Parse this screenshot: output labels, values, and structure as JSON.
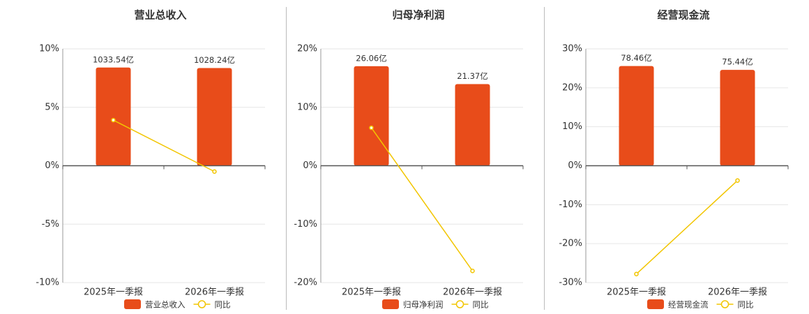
{
  "chart_data": [
    {
      "type": "bar-line",
      "title": "营业总收入",
      "categories": [
        "2025年一季报",
        "2026年一季报"
      ],
      "series": [
        {
          "name": "营业总收入",
          "type": "bar",
          "axis": "y2",
          "color": "#e84c1a",
          "values": [
            1033.54,
            1028.24
          ],
          "value_labels": [
            "1033.54亿",
            "1028.24亿"
          ]
        },
        {
          "name": "同比",
          "type": "line",
          "color": "#f2c500",
          "values": [
            3.9,
            -0.5
          ]
        }
      ],
      "ylim": [
        -10,
        10
      ],
      "yticks": [
        {
          "value": -10,
          "label": "-10%"
        },
        {
          "value": -5,
          "label": "-5%"
        },
        {
          "value": 0,
          "label": "0%"
        },
        {
          "value": 5,
          "label": "5%"
        },
        {
          "value": 10,
          "label": "10%"
        }
      ],
      "y2lim": [
        -1230,
        1230
      ],
      "grid": true
    },
    {
      "type": "bar-line",
      "title": "归母净利润",
      "categories": [
        "2025年一季报",
        "2026年一季报"
      ],
      "series": [
        {
          "name": "归母净利润",
          "type": "bar",
          "axis": "y2",
          "color": "#e84c1a",
          "values": [
            26.06,
            21.37
          ],
          "value_labels": [
            "26.06亿",
            "21.37亿"
          ]
        },
        {
          "name": "同比",
          "type": "line",
          "color": "#f2c500",
          "values": [
            6.5,
            -18
          ]
        }
      ],
      "ylim": [
        -20,
        20
      ],
      "yticks": [
        {
          "value": -20,
          "label": "-20%"
        },
        {
          "value": -10,
          "label": "-10%"
        },
        {
          "value": 0,
          "label": "0%"
        },
        {
          "value": 10,
          "label": "10%"
        },
        {
          "value": 20,
          "label": "20%"
        }
      ],
      "y2lim": [
        -30.6,
        30.6
      ],
      "grid": true
    },
    {
      "type": "bar-line",
      "title": "经营现金流",
      "categories": [
        "2025年一季报",
        "2026年一季报"
      ],
      "series": [
        {
          "name": "经营现金流",
          "type": "bar",
          "axis": "y2",
          "color": "#e84c1a",
          "values": [
            78.46,
            75.44
          ],
          "value_labels": [
            "78.46亿",
            "75.44亿"
          ]
        },
        {
          "name": "同比",
          "type": "line",
          "color": "#f2c500",
          "values": [
            -27.8,
            -3.8
          ]
        }
      ],
      "ylim": [
        -30,
        30
      ],
      "yticks": [
        {
          "value": -30,
          "label": "-30%"
        },
        {
          "value": -20,
          "label": "-20%"
        },
        {
          "value": -10,
          "label": "-10%"
        },
        {
          "value": 0,
          "label": "0%"
        },
        {
          "value": 10,
          "label": "10%"
        },
        {
          "value": 20,
          "label": "20%"
        },
        {
          "value": 30,
          "label": "30%"
        }
      ],
      "y2lim": [
        -92,
        92
      ],
      "grid": true
    }
  ]
}
